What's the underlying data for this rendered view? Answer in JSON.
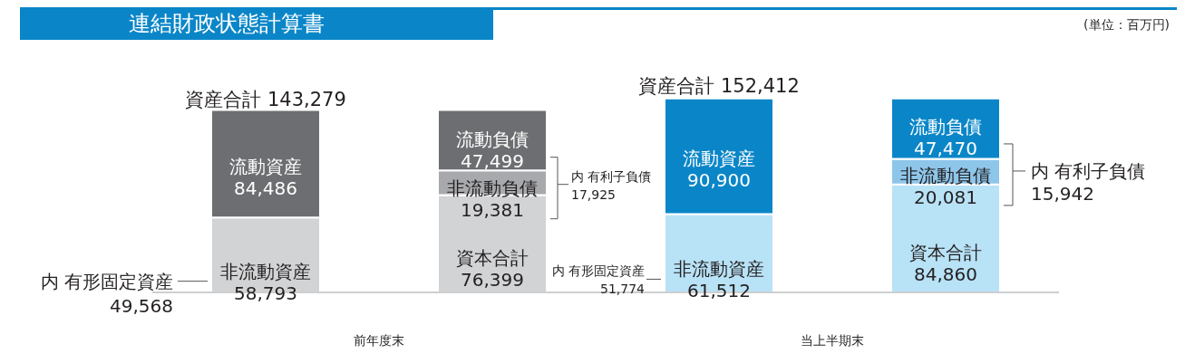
{
  "chart_data": {
    "type": "bar",
    "title": "連結財政状態計算書",
    "stacked": true,
    "tick_labels": false,
    "categories": [
      null,
      null,
      null,
      null
    ],
    "series": [
      {
        "name": "非流動資産",
        "colors": [
          "#d1d3d4",
          null,
          "#b8e2f6",
          null
        ],
        "values": [
          58793,
          null,
          61512,
          null
        ],
        "value_labels": [
          "58,793",
          null,
          "61,512",
          null
        ]
      },
      {
        "name": "流動資産",
        "colors": [
          "#6d6e71",
          null,
          "#0a86c8",
          null
        ],
        "values": [
          84486,
          null,
          90900,
          null
        ],
        "value_labels": [
          "84,486",
          null,
          "90,900",
          null
        ]
      },
      {
        "name": "資本合計",
        "colors": [
          null,
          "#d1d3d4",
          null,
          "#b8e2f6"
        ],
        "values": [
          null,
          76399,
          null,
          84860
        ],
        "value_labels": [
          null,
          "76,399",
          null,
          "84,860"
        ]
      },
      {
        "name": "非流動負債",
        "colors": [
          null,
          "#a7a9ac",
          null,
          "#8ec6ea"
        ],
        "values": [
          null,
          19381,
          null,
          20081
        ],
        "value_labels": [
          null,
          "19,381",
          null,
          "20,081"
        ]
      },
      {
        "name": "流動負債",
        "colors": [
          null,
          "#6d6e71",
          null,
          "#0a86c8"
        ],
        "values": [
          null,
          47499,
          null,
          47470
        ],
        "value_labels": [
          null,
          "47,499",
          null,
          "47,470"
        ]
      }
    ],
    "totals": [
      "資産合計 143,279",
      null,
      "資産合計 152,412",
      null
    ],
    "annotations": [
      "(単位：百万円)",
      "前年度末",
      "当上半期末",
      "内 有形固定資産 49,568",
      "内 有形固定資産 51,774",
      "内 有利子負債 17,925",
      "内 有利子負債 15,942"
    ]
  }
}
